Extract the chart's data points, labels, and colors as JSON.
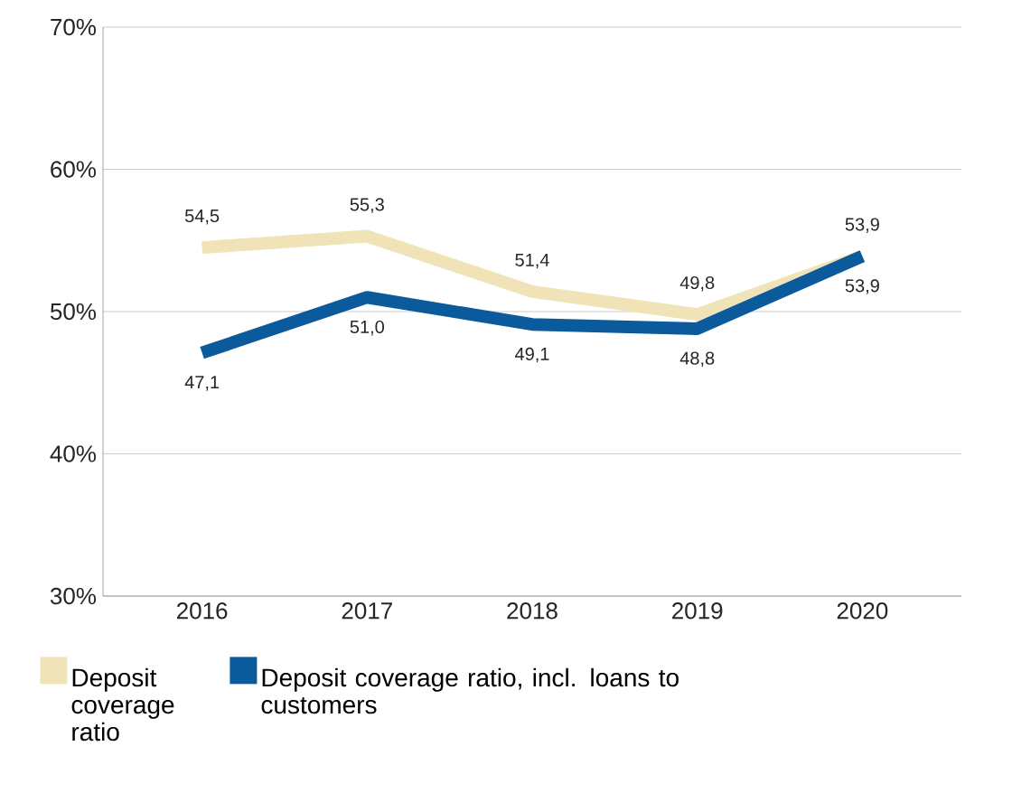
{
  "chart_data": {
    "type": "line",
    "categories": [
      "2016",
      "2017",
      "2018",
      "2019",
      "2020"
    ],
    "series": [
      {
        "name": "Deposit coverage ratio",
        "color": "#f0e3b8",
        "values": [
          54.5,
          55.3,
          51.4,
          49.8,
          53.9
        ],
        "value_labels": [
          "54,5",
          "55,3",
          "51,4",
          "49,8",
          "53,9"
        ]
      },
      {
        "name": "Deposit coverage ratio, incl. loans to customers",
        "color": "#0b5b9c",
        "values": [
          47.1,
          51.0,
          49.1,
          48.8,
          53.9
        ],
        "value_labels": [
          "47,1",
          "51,0",
          "49,1",
          "48,8",
          "53,9"
        ]
      }
    ],
    "ylim": [
      30,
      70
    ],
    "yticks": [
      {
        "value": 30,
        "label": "30%"
      },
      {
        "value": 40,
        "label": "40%"
      },
      {
        "value": 50,
        "label": "50%"
      },
      {
        "value": 60,
        "label": "60%"
      },
      {
        "value": 70,
        "label": "70%"
      }
    ],
    "grid": "y",
    "legend": "bottom",
    "marker": "none",
    "line_style": "solid"
  }
}
